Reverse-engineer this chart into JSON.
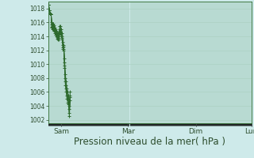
{
  "background_color": "#ceeaea",
  "grid_color": "#a8cec0",
  "line_color": "#2d6a2d",
  "marker_color": "#2d6a2d",
  "xlabel": "Pression niveau de la mer( hPa )",
  "xlabel_fontsize": 8.5,
  "ylim": [
    1001.5,
    1019.0
  ],
  "yticks": [
    1002,
    1004,
    1006,
    1008,
    1010,
    1012,
    1014,
    1016,
    1018
  ],
  "xtick_labels": [
    "Sam",
    "Mar",
    "Dim",
    "Lun"
  ],
  "xtick_positions": [
    16,
    100,
    185,
    255
  ],
  "series1": [
    1018.5,
    1017.7,
    1017.3,
    1017.2,
    1015.2,
    1015.0,
    1015.0,
    1014.8,
    1014.5,
    1014.2,
    1014.0,
    1013.7,
    1013.5,
    1013.5,
    1014.5,
    1014.5,
    1014.0,
    1013.5,
    1012.2,
    1012.0,
    1009.5,
    1007.0,
    1006.0,
    1005.0,
    1004.5,
    1004.2,
    1002.5,
    1004.8
  ],
  "series2": [
    1018.5,
    1017.7,
    1017.3,
    1017.2,
    1015.4,
    1015.2,
    1015.2,
    1015.0,
    1014.7,
    1014.4,
    1014.2,
    1013.9,
    1013.8,
    1013.8,
    1014.7,
    1014.7,
    1014.2,
    1013.8,
    1012.4,
    1012.2,
    1009.8,
    1007.5,
    1006.5,
    1005.5,
    1005.0,
    1004.5,
    1003.0,
    1005.2
  ],
  "series3": [
    1018.5,
    1017.7,
    1017.3,
    1017.2,
    1015.7,
    1015.5,
    1015.5,
    1015.3,
    1015.0,
    1014.7,
    1014.5,
    1014.2,
    1014.0,
    1014.0,
    1015.0,
    1015.0,
    1014.5,
    1014.0,
    1012.7,
    1012.5,
    1010.2,
    1008.0,
    1007.0,
    1006.0,
    1005.5,
    1005.0,
    1003.5,
    1005.5
  ],
  "series4": [
    1018.5,
    1017.7,
    1017.3,
    1017.2,
    1016.0,
    1015.8,
    1015.8,
    1015.6,
    1015.3,
    1015.0,
    1014.8,
    1014.5,
    1014.5,
    1014.5,
    1015.5,
    1015.5,
    1015.0,
    1014.5,
    1013.2,
    1012.8,
    1010.8,
    1008.5,
    1007.5,
    1006.5,
    1006.0,
    1005.5,
    1004.0,
    1006.0
  ],
  "n_points": 28
}
